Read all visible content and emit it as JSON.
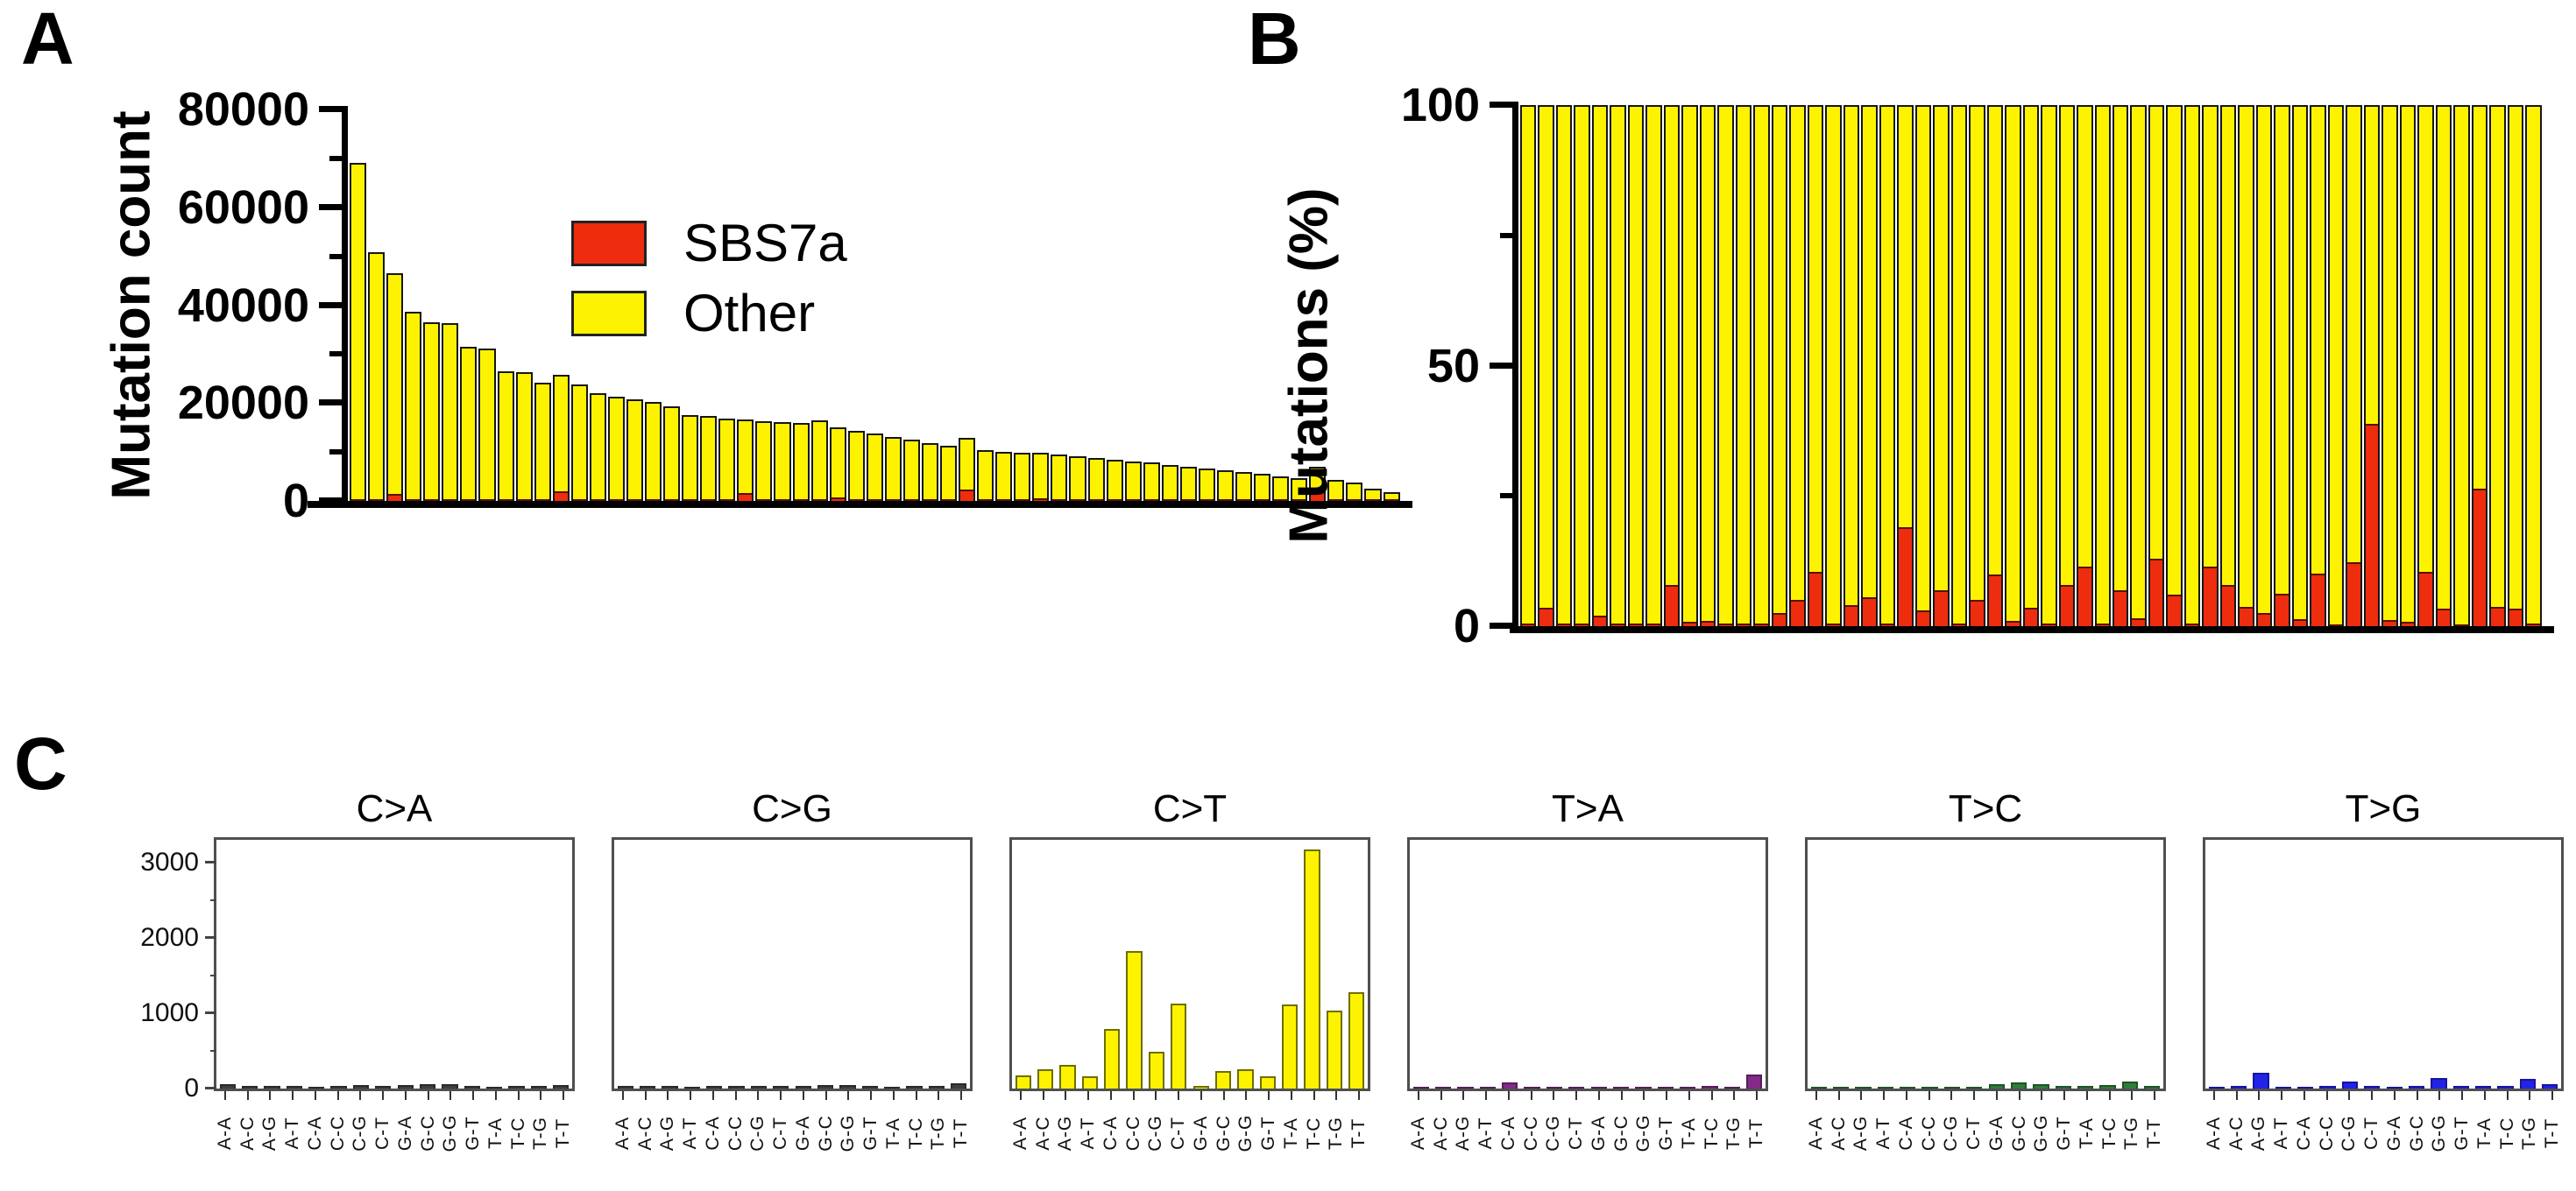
{
  "ui": {
    "panel_letters": {
      "a": "A",
      "b": "B",
      "c": "C"
    }
  },
  "colors": {
    "sbs7a_red": "#ee2c0e",
    "other_yellow": "#fdf300",
    "axis_black": "#000000",
    "c_box_border": "#4f4f4f"
  },
  "chart_data": [
    {
      "id": "A",
      "type": "bar",
      "stacked": true,
      "ylabel": "Mutation count",
      "xlabel": "",
      "ylim": [
        0,
        80000
      ],
      "yticks": [
        0,
        20000,
        40000,
        60000,
        80000
      ],
      "yticks_minor": [
        10000,
        30000,
        50000,
        70000
      ],
      "legend": [
        "SBS7a",
        "Other"
      ],
      "legend_position": "upper-center",
      "n_samples": 57,
      "totals": [
        69000,
        50800,
        46500,
        38600,
        36500,
        36300,
        31500,
        31200,
        26500,
        26300,
        24200,
        25800,
        23800,
        22000,
        21300,
        20700,
        20200,
        19400,
        17600,
        17300,
        16900,
        16600,
        16300,
        16100,
        16000,
        16400,
        15000,
        14400,
        13800,
        13000,
        12500,
        11800,
        11200,
        12900,
        10400,
        10000,
        9800,
        9900,
        9400,
        9100,
        8800,
        8500,
        8100,
        7800,
        7400,
        7000,
        6700,
        6300,
        5900,
        5500,
        5100,
        4700,
        6900,
        4300,
        3800,
        2500,
        1800
      ],
      "sbs7a_counts": [
        150,
        200,
        1500,
        180,
        160,
        150,
        140,
        150,
        160,
        150,
        140,
        2000,
        150,
        140,
        130,
        140,
        130,
        120,
        130,
        140,
        150,
        1700,
        130,
        120,
        110,
        400,
        800,
        120,
        110,
        100,
        100,
        110,
        100,
        2400,
        100,
        90,
        90,
        500,
        90,
        80,
        90,
        80,
        80,
        70,
        80,
        70,
        60,
        70,
        60,
        60,
        50,
        60,
        2100,
        60,
        50,
        40,
        30
      ]
    },
    {
      "id": "B",
      "type": "bar",
      "stacked": true,
      "ylabel": "Mutations (%)",
      "xlabel": "",
      "ylim": [
        0,
        100
      ],
      "yticks": [
        0,
        50,
        100
      ],
      "yticks_minor": [
        25,
        75
      ],
      "n_samples": 57,
      "sbs7a_percent": [
        0.5,
        3.5,
        0.5,
        0.5,
        2,
        0.5,
        0.5,
        0.5,
        8,
        0.8,
        1,
        0.5,
        0.5,
        0.5,
        2.5,
        5,
        10.5,
        0.5,
        4,
        5.5,
        0.5,
        19,
        3,
        7,
        0.5,
        5,
        10,
        1,
        3.5,
        0.5,
        8,
        11.5,
        0.5,
        7,
        1.5,
        13,
        6,
        0.5,
        11.5,
        8,
        3.7,
        2.5,
        6.3,
        1.3,
        10.2,
        0.3,
        12.3,
        39,
        1.1,
        0.8,
        10.5,
        3.4,
        0.3,
        26.5,
        3.7,
        3.3,
        0.5
      ],
      "other_percent_note": "Other segment fills each bar up to 100"
    },
    {
      "id": "C",
      "type": "bar",
      "ylim": [
        0,
        3300
      ],
      "yticks": [
        0,
        1000,
        2000,
        3000
      ],
      "yticks_minor": [
        500,
        1500,
        2500
      ],
      "categories": [
        "A-A",
        "A-C",
        "A-G",
        "A-T",
        "C-A",
        "C-C",
        "C-G",
        "C-T",
        "G-A",
        "G-C",
        "G-G",
        "G-T",
        "T-A",
        "T-C",
        "T-G",
        "T-T"
      ],
      "panels": [
        {
          "title": "C>A",
          "color": "#3f3f3f",
          "border": "#2a2a2a",
          "values": [
            55,
            40,
            30,
            30,
            25,
            30,
            45,
            30,
            45,
            60,
            55,
            40,
            20,
            30,
            40,
            50
          ]
        },
        {
          "title": "C>G",
          "color": "#3f3f3f",
          "border": "#2a2a2a",
          "values": [
            30,
            35,
            30,
            25,
            30,
            35,
            40,
            30,
            35,
            50,
            45,
            30,
            25,
            30,
            35,
            75
          ]
        },
        {
          "title": "C>T",
          "color": "#fdf300",
          "border": "#6e6e00",
          "values": [
            170,
            260,
            310,
            160,
            790,
            1820,
            490,
            1130,
            40,
            230,
            260,
            160,
            1120,
            3170,
            1030,
            1280
          ]
        },
        {
          "title": "T>A",
          "color": "#842a86",
          "border": "#561d5c",
          "values": [
            20,
            15,
            15,
            15,
            85,
            20,
            15,
            25,
            15,
            15,
            20,
            15,
            25,
            30,
            20,
            190
          ]
        },
        {
          "title": "T>C",
          "color": "#2e7d3a",
          "border": "#1e5426",
          "values": [
            15,
            20,
            15,
            15,
            20,
            25,
            20,
            15,
            55,
            80,
            60,
            35,
            30,
            45,
            95,
            40
          ]
        },
        {
          "title": "T>G",
          "color": "#2323e6",
          "border": "#15159e",
          "values": [
            25,
            30,
            210,
            20,
            20,
            30,
            95,
            35,
            25,
            30,
            140,
            30,
            30,
            35,
            130,
            55
          ]
        }
      ]
    }
  ]
}
